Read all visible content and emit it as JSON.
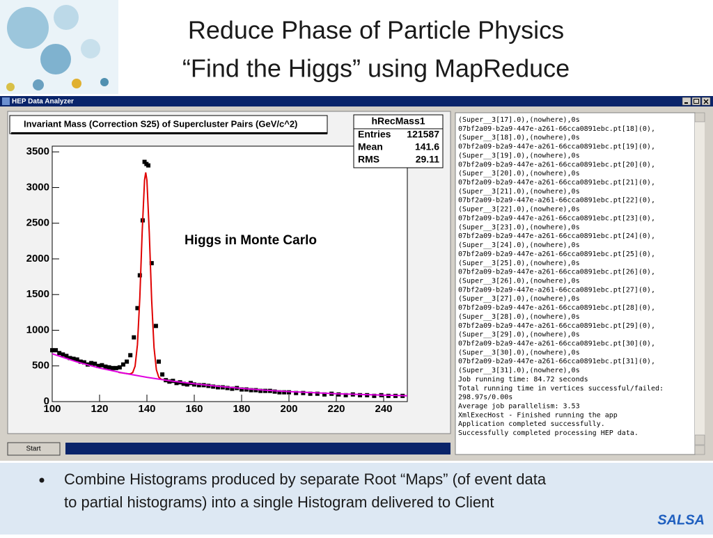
{
  "slide_title": {
    "line1": "Reduce Phase of Particle Physics",
    "line2": "“Find the Higgs” using MapReduce"
  },
  "window": {
    "title": "HEP Data Analyzer",
    "start_button": "Start"
  },
  "chart_data": {
    "type": "scatter",
    "title": "Invariant Mass (Correction S25) of Supercluster Pairs (GeV/c^2)",
    "annotation": "Higgs in Monte Carlo",
    "stats": {
      "name": "hRecMass1",
      "rows": [
        {
          "label": "Entries",
          "value": 121587
        },
        {
          "label": "Mean",
          "value": 141.6
        },
        {
          "label": "RMS",
          "value": 29.11
        }
      ]
    },
    "xlim": [
      100,
      250
    ],
    "ylim": [
      0,
      3580
    ],
    "xticks": [
      100,
      120,
      140,
      160,
      180,
      200,
      220,
      240
    ],
    "yticks": [
      0,
      500,
      1000,
      1500,
      2000,
      2500,
      3000,
      3500
    ],
    "series": [
      {
        "style": "marker",
        "color": "#000000",
        "x": [
          100,
          101.5,
          103,
          104.5,
          106,
          107.5,
          109,
          110.5,
          112,
          113.5,
          115,
          116.5,
          118,
          119.5,
          121,
          122.5,
          124,
          125.5,
          127,
          128.5,
          130,
          131.5,
          133,
          134.5,
          136,
          137,
          138.2,
          139,
          139.8,
          140.6,
          142,
          143.8,
          145,
          146.5,
          148,
          149.5,
          151,
          152.5,
          154,
          155.5,
          157,
          158.5,
          160,
          162,
          164,
          166,
          168,
          170,
          172,
          174,
          176,
          178,
          180,
          182,
          184,
          186,
          188,
          190,
          192,
          194,
          196,
          198,
          200,
          203,
          206,
          209,
          212,
          215,
          218,
          221,
          224,
          227,
          230,
          233,
          236,
          239,
          242,
          245,
          248
        ],
        "values": [
          720,
          720,
          680,
          660,
          640,
          610,
          600,
          590,
          560,
          550,
          520,
          540,
          530,
          500,
          510,
          490,
          480,
          470,
          470,
          480,
          520,
          560,
          650,
          900,
          1310,
          1770,
          2540,
          3360,
          3330,
          3310,
          1940,
          1060,
          560,
          380,
          300,
          280,
          290,
          260,
          270,
          250,
          240,
          260,
          240,
          230,
          230,
          220,
          210,
          200,
          200,
          190,
          180,
          190,
          170,
          170,
          160,
          160,
          150,
          150,
          150,
          140,
          130,
          130,
          130,
          120,
          120,
          110,
          110,
          100,
          110,
          100,
          90,
          100,
          90,
          90,
          80,
          90,
          80,
          80,
          80
        ]
      },
      {
        "style": "line",
        "color": "#e00000",
        "x": [
          128,
          130,
          132,
          133,
          134,
          135,
          136,
          137,
          138,
          139,
          139.5,
          140,
          141,
          142,
          143,
          144,
          145,
          146,
          148,
          150
        ],
        "values": [
          410,
          400,
          390,
          389,
          407,
          496,
          798,
          1454,
          2379,
          3106,
          3212,
          3101,
          2364,
          1424,
          758,
          446,
          342,
          314,
          300,
          290
        ]
      },
      {
        "style": "line",
        "color": "#e000e0",
        "x": [
          100,
          110,
          120,
          130,
          140,
          150,
          160,
          170,
          180,
          190,
          200,
          210,
          220,
          230,
          240,
          250
        ],
        "values": [
          670,
          560,
          470,
          400,
          340,
          290,
          250,
          215,
          185,
          160,
          140,
          125,
          110,
          100,
          90,
          82
        ]
      }
    ]
  },
  "log": {
    "lines": [
      "(Super__3[17].0),(nowhere),0s",
      "07bf2a09-b2a9-447e-a261-66cca0891ebc.pt[18](0),",
      "(Super__3[18].0),(nowhere),0s",
      "07bf2a09-b2a9-447e-a261-66cca0891ebc.pt[19](0),",
      "(Super__3[19].0),(nowhere),0s",
      "07bf2a09-b2a9-447e-a261-66cca0891ebc.pt[20](0),",
      "(Super__3[20].0),(nowhere),0s",
      "07bf2a09-b2a9-447e-a261-66cca0891ebc.pt[21](0),",
      "(Super__3[21].0),(nowhere),0s",
      "07bf2a09-b2a9-447e-a261-66cca0891ebc.pt[22](0),",
      "(Super__3[22].0),(nowhere),0s",
      "07bf2a09-b2a9-447e-a261-66cca0891ebc.pt[23](0),",
      "(Super__3[23].0),(nowhere),0s",
      "07bf2a09-b2a9-447e-a261-66cca0891ebc.pt[24](0),",
      "(Super__3[24].0),(nowhere),0s",
      "07bf2a09-b2a9-447e-a261-66cca0891ebc.pt[25](0),",
      "(Super__3[25].0),(nowhere),0s",
      "07bf2a09-b2a9-447e-a261-66cca0891ebc.pt[26](0),",
      "(Super__3[26].0),(nowhere),0s",
      "07bf2a09-b2a9-447e-a261-66cca0891ebc.pt[27](0),",
      "(Super__3[27].0),(nowhere),0s",
      "07bf2a09-b2a9-447e-a261-66cca0891ebc.pt[28](0),",
      "(Super__3[28].0),(nowhere),0s",
      "07bf2a09-b2a9-447e-a261-66cca0891ebc.pt[29](0),",
      "(Super__3[29].0),(nowhere),0s",
      "07bf2a09-b2a9-447e-a261-66cca0891ebc.pt[30](0),",
      "(Super__3[30].0),(nowhere),0s",
      "07bf2a09-b2a9-447e-a261-66cca0891ebc.pt[31](0),",
      "(Super__3[31].0),(nowhere),0s",
      "Job running time: 84.72 seconds",
      "Total running time in vertices successful/failed:",
      "298.97s/0.00s",
      "Average job parallelism: 3.53",
      "XmlExecHost - Finished running the app",
      "Application completed successfully.",
      "Successfully completed processing HEP data."
    ]
  },
  "bullet": {
    "lines": [
      "Combine Histograms produced by separate Root “Maps” (of event data",
      "to partial histograms) into a single Histogram delivered to Client"
    ]
  },
  "logo": "SALSA"
}
